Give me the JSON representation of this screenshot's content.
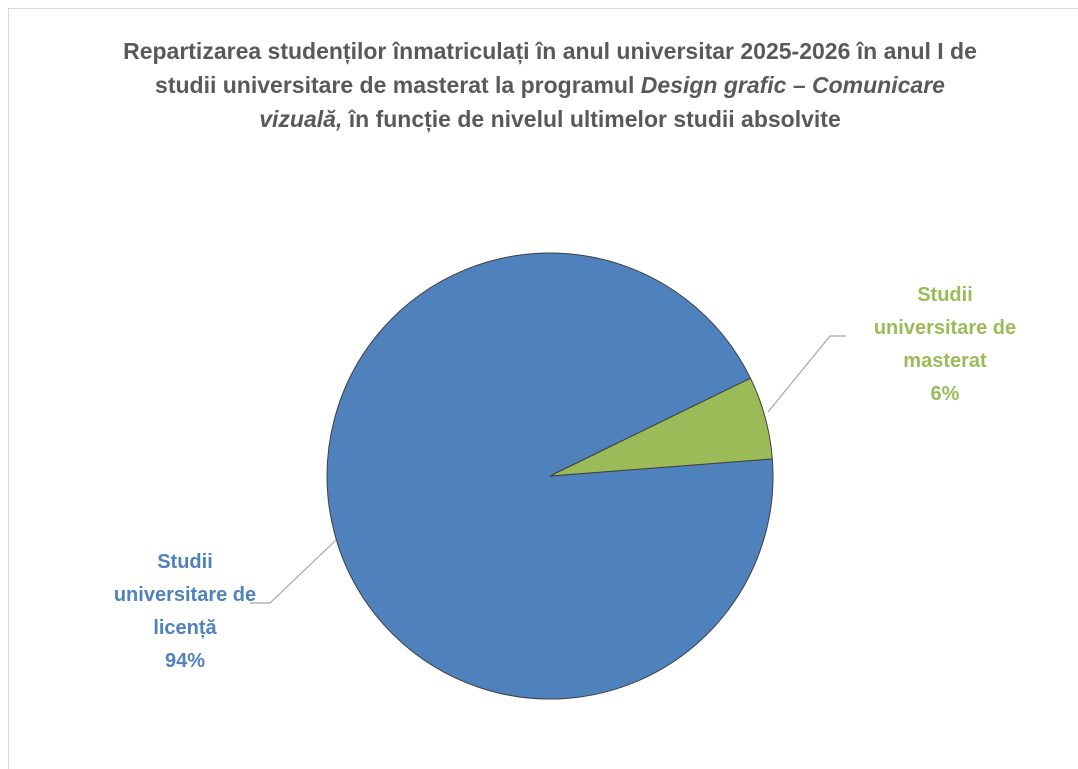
{
  "chart_data": {
    "type": "pie",
    "title": [
      "Repartizarea studenților înmatriculați în anul universitar 2025-2026 în anul I de studii universitare de masterat la programul ",
      "Design grafic – Comunicare vizuală,",
      " în funcție de nivelul ultimelor studii absolvite"
    ],
    "categories": [
      "Studii universitare de licență",
      "Studii universitare de masterat"
    ],
    "values": [
      94,
      6
    ],
    "value_labels": [
      "94%",
      "6%"
    ],
    "colors": [
      "#4f81bd",
      "#9bbb59"
    ]
  }
}
